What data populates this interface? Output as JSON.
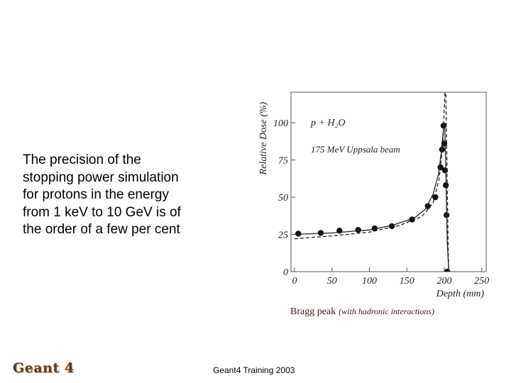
{
  "slide": {
    "text_lines": [
      "The precision of the",
      "stopping power simulation",
      "for protons in the energy",
      "from 1 keV to 10 GeV is of",
      "the order of a few per cent"
    ],
    "caption_main": "Bragg peak",
    "caption_note": "(with hadronic interactions)",
    "logo": "Geant 4",
    "footer": "Geant4 Training 2003"
  },
  "chart_data": {
    "type": "line",
    "xlabel": "Depth (mm)",
    "ylabel": "Relative Dose (%)",
    "xlim": [
      0,
      250
    ],
    "ylim": [
      0,
      120
    ],
    "xticks": [
      0,
      50,
      100,
      150,
      200,
      250
    ],
    "yticks": [
      0,
      25,
      50,
      75,
      100
    ],
    "annotations": [
      "p + H₂O",
      "175 MeV Uppsala beam"
    ],
    "series": [
      {
        "style": "points",
        "x": [
          5,
          35,
          60,
          85,
          107,
          130,
          157,
          178,
          188,
          195,
          197,
          199,
          200,
          201,
          202,
          203,
          204
        ],
        "y": [
          25.5,
          26,
          27.5,
          28,
          29,
          30.5,
          35,
          44,
          50,
          70,
          82,
          98,
          86,
          68,
          58,
          38,
          0
        ]
      },
      {
        "style": "solid",
        "x": [
          0,
          50,
          100,
          130,
          160,
          175,
          185,
          192,
          196,
          199,
          200.5,
          202,
          204,
          206
        ],
        "y": [
          25,
          26,
          28,
          31,
          36,
          42,
          52,
          65,
          80,
          96,
          100,
          70,
          20,
          0
        ]
      },
      {
        "style": "dashed",
        "x": [
          0,
          50,
          100,
          140,
          170,
          185,
          193,
          198,
          200,
          201,
          202,
          203,
          205,
          206
        ],
        "y": [
          22,
          24,
          26.5,
          31,
          37,
          46,
          62,
          85,
          110,
          122,
          122,
          90,
          20,
          0
        ]
      }
    ]
  }
}
